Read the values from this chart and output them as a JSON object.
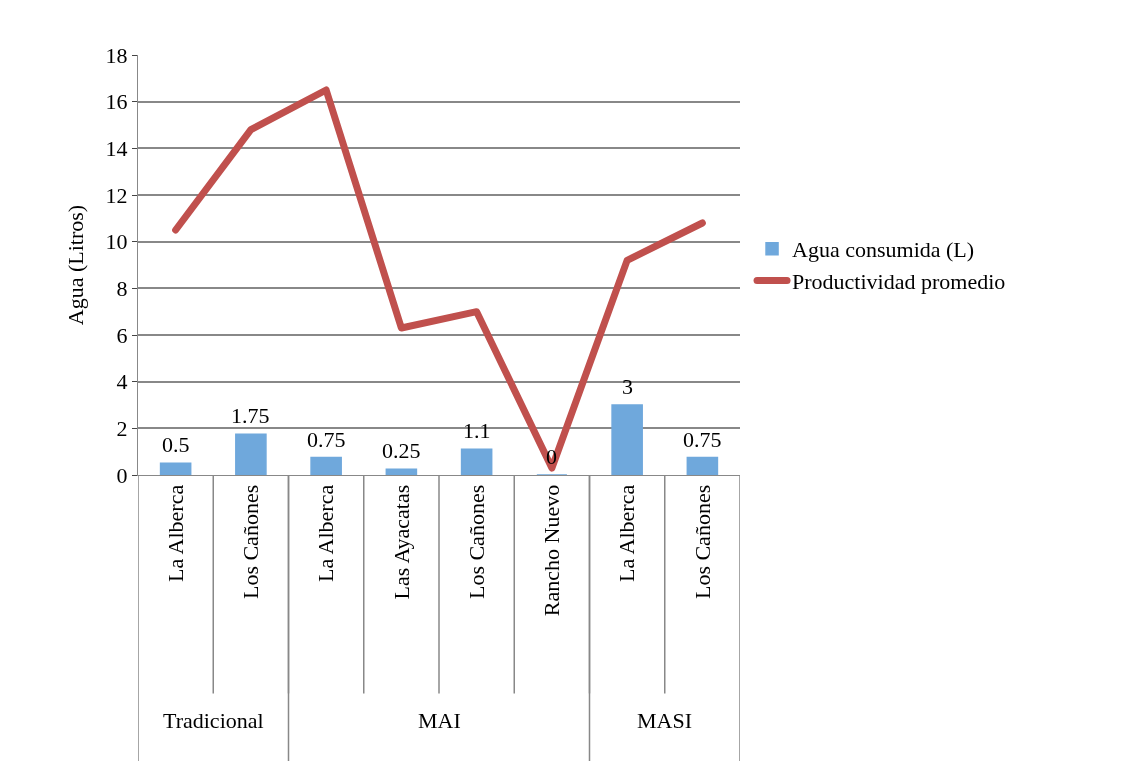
{
  "chart_data": {
    "type": "bar",
    "ylabel": "Agua (Litros)",
    "categories": [
      "La Alberca",
      "Los Cañones",
      "La Alberca",
      "Las Ayacatas",
      "Los Cañones",
      "Rancho Nuevo",
      "La Alberca",
      "Los Cañones"
    ],
    "series": [
      {
        "name": "Agua consumida (L)",
        "color": "#6fa8dc",
        "values": [
          0.5,
          1.75,
          0.75,
          0.25,
          1.1,
          0,
          3,
          0.75
        ],
        "value_labels": [
          "0.5",
          "1.75",
          "0.75",
          "0.25",
          "1.1",
          "0",
          "3",
          "0.75"
        ]
      },
      {
        "name": "Productividad promedio",
        "type": "line",
        "color": "#c0504d",
        "values": [
          10.5,
          14.8,
          16.5,
          6.3,
          7.0,
          0.3,
          9.2,
          10.8
        ],
        "marker": "none"
      }
    ],
    "ylim": [
      0,
      18
    ],
    "yticks": [
      0,
      2,
      4,
      6,
      8,
      10,
      12,
      14,
      16,
      18
    ],
    "grid": "y",
    "legend": "right",
    "annotations": [
      "Tradicional",
      "MAI",
      "MASI"
    ]
  }
}
